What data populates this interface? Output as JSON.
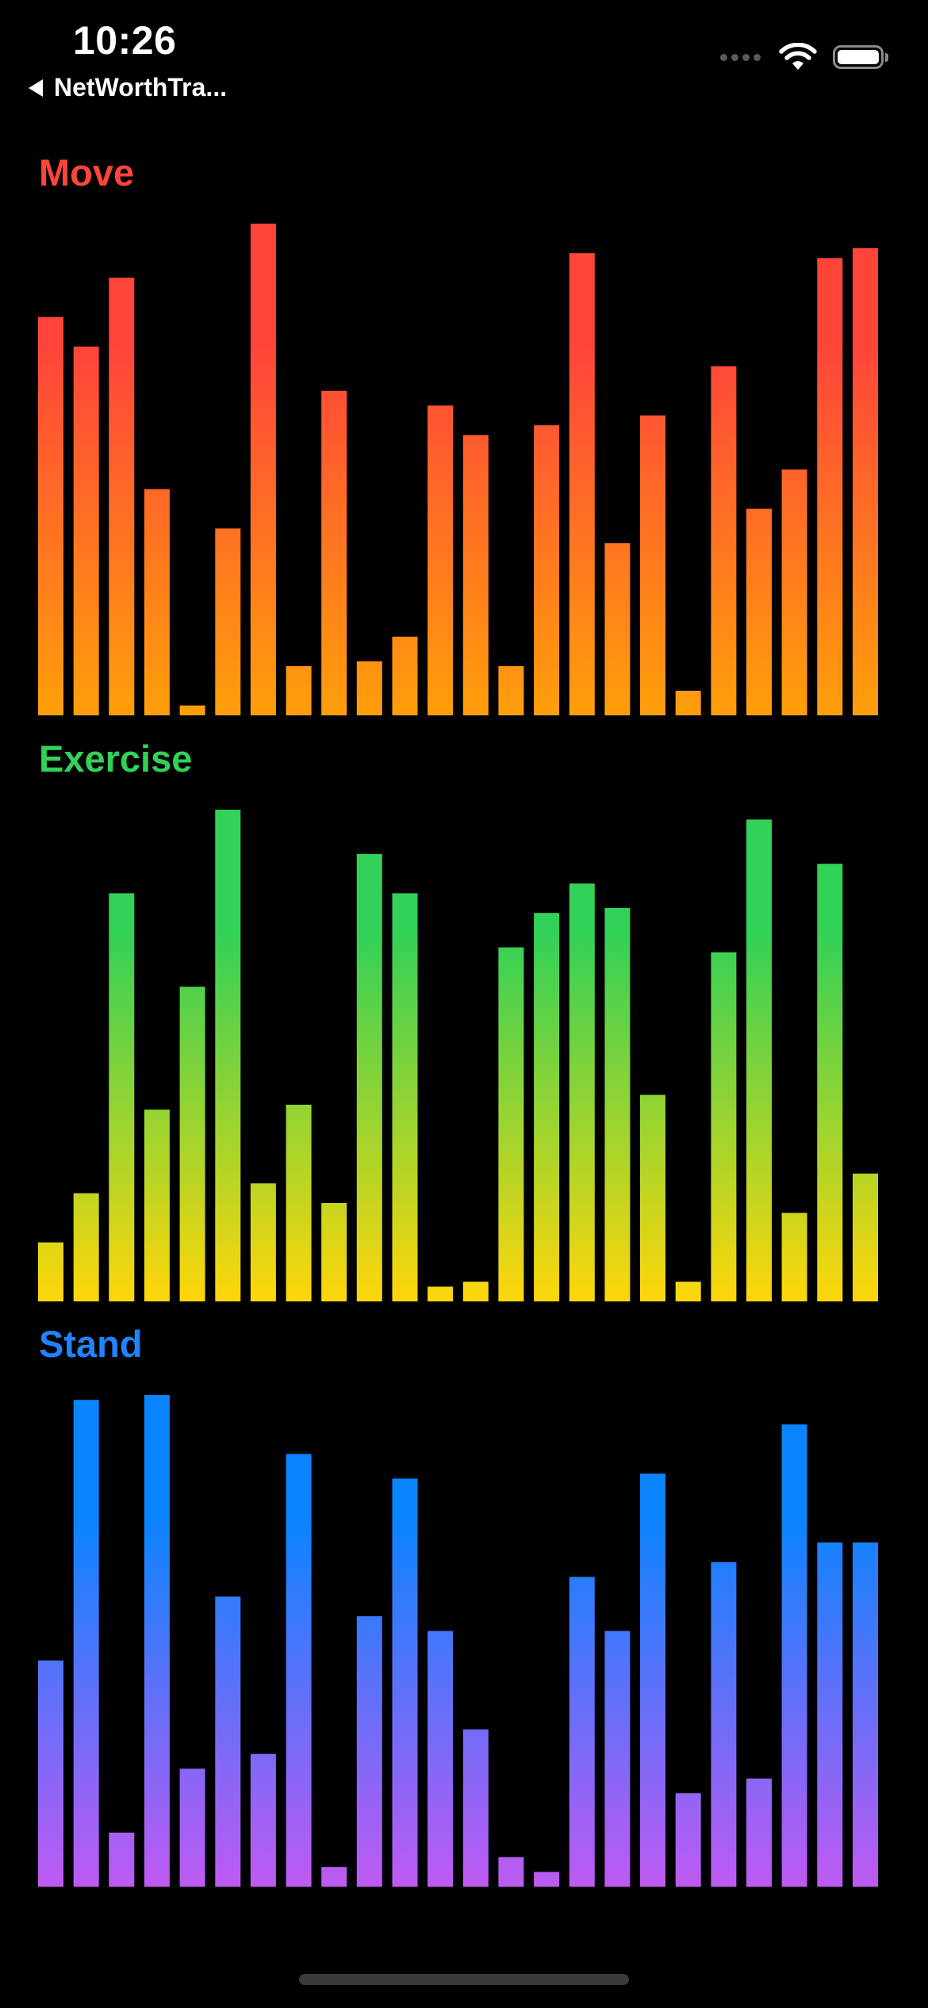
{
  "status_bar": {
    "time": "10:26",
    "back_label": "NetWorthTra..."
  },
  "colors": {
    "move_title": "#ff453a",
    "exercise_title": "#32d158",
    "stand_title": "#1f84ff",
    "move_top": "#ff453a",
    "move_bottom": "#ff9f0a",
    "exercise_top": "#32d158",
    "exercise_bottom": "#ffd60a",
    "stand_top": "#0a84ff",
    "stand_bottom": "#bf5af2"
  },
  "chart_data": [
    {
      "type": "bar",
      "title": "Move",
      "ylim": [
        0,
        100
      ],
      "series": [
        {
          "values": [
            81,
            75,
            89,
            46,
            2,
            38,
            100,
            10,
            66,
            11,
            16,
            63,
            57,
            10,
            59,
            94,
            35,
            61,
            5,
            71,
            42,
            50,
            93,
            95
          ]
        }
      ]
    },
    {
      "type": "bar",
      "title": "Exercise",
      "ylim": [
        0,
        100
      ],
      "series": [
        {
          "values": [
            12,
            22,
            83,
            39,
            64,
            100,
            24,
            40,
            20,
            91,
            83,
            3,
            4,
            72,
            79,
            85,
            80,
            42,
            4,
            71,
            98,
            18,
            89,
            26
          ]
        }
      ]
    },
    {
      "type": "bar",
      "title": "Stand",
      "ylim": [
        0,
        100
      ],
      "series": [
        {
          "values": [
            46,
            99,
            11,
            100,
            24,
            59,
            27,
            88,
            4,
            55,
            83,
            52,
            32,
            6,
            3,
            63,
            52,
            84,
            19,
            66,
            22,
            94,
            70,
            70
          ]
        }
      ]
    }
  ]
}
